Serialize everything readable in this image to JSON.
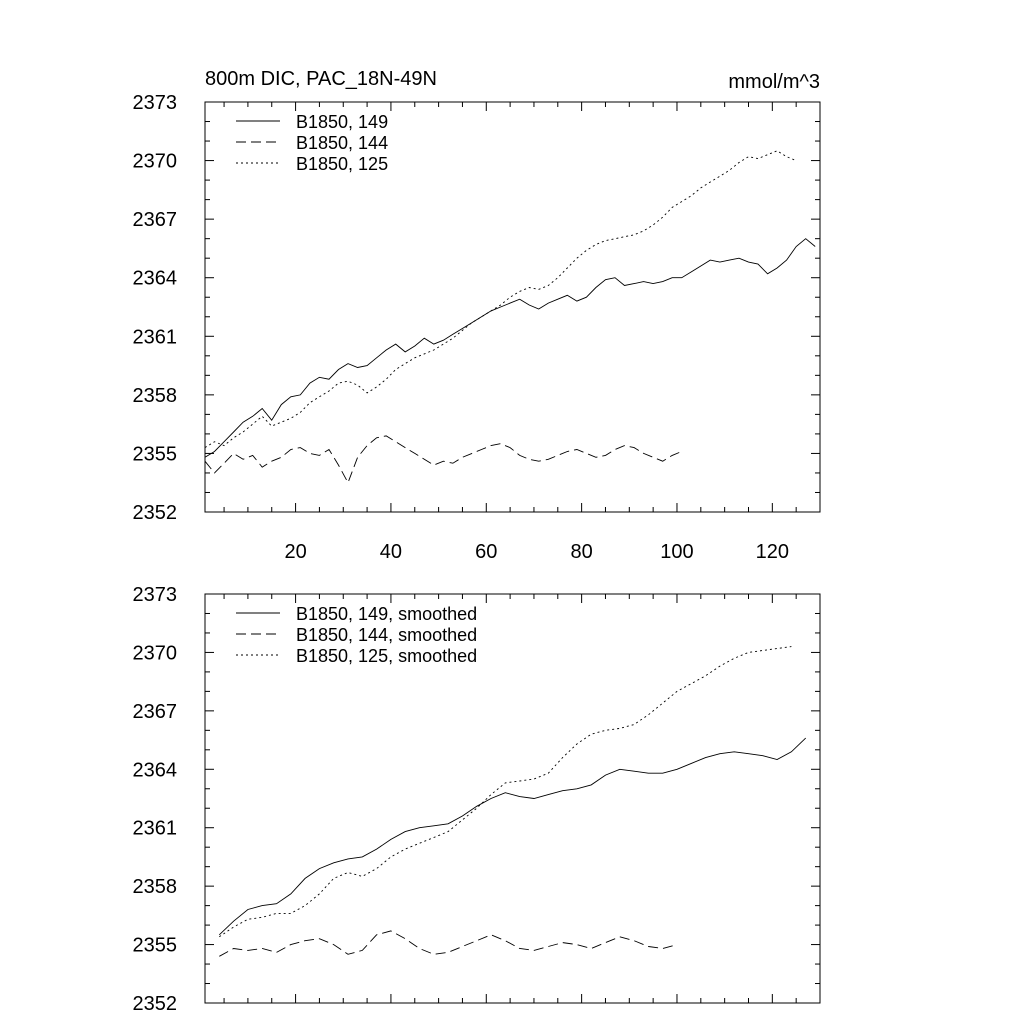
{
  "chart_data": [
    {
      "type": "line",
      "title": "800m DIC, PAC_18N-49N",
      "units": "mmol/m^3",
      "xlim": [
        1,
        130
      ],
      "ylim": [
        2352,
        2373
      ],
      "yticks": [
        2352,
        2355,
        2358,
        2361,
        2364,
        2367,
        2370,
        2373
      ],
      "xticks": [
        20,
        40,
        60,
        80,
        100,
        120
      ],
      "xtick_labels": [
        "20",
        "40",
        "60",
        "80",
        "100",
        "120"
      ],
      "legend": [
        "B1850, 149",
        "B1850, 144",
        "B1850, 125"
      ],
      "series": [
        {
          "name": "B1850, 149",
          "style": "solid",
          "x": [
            1,
            3,
            5,
            7,
            9,
            11,
            13,
            15,
            17,
            19,
            21,
            23,
            25,
            27,
            29,
            31,
            33,
            35,
            37,
            39,
            41,
            43,
            45,
            47,
            49,
            51,
            53,
            55,
            57,
            59,
            61,
            63,
            65,
            67,
            69,
            71,
            73,
            75,
            77,
            79,
            81,
            83,
            85,
            87,
            89,
            91,
            93,
            95,
            97,
            99,
            101,
            103,
            105,
            107,
            109,
            111,
            113,
            115,
            117,
            119,
            121,
            123,
            125,
            127,
            129
          ],
          "values": [
            2354.8,
            2355.1,
            2355.6,
            2356.1,
            2356.6,
            2356.9,
            2357.3,
            2356.7,
            2357.5,
            2357.9,
            2358.0,
            2358.6,
            2358.9,
            2358.8,
            2359.3,
            2359.6,
            2359.4,
            2359.5,
            2359.9,
            2360.3,
            2360.6,
            2360.2,
            2360.5,
            2360.9,
            2360.6,
            2360.8,
            2361.1,
            2361.4,
            2361.7,
            2362.0,
            2362.3,
            2362.5,
            2362.7,
            2362.9,
            2362.6,
            2362.4,
            2362.7,
            2362.9,
            2363.1,
            2362.8,
            2363.0,
            2363.5,
            2363.9,
            2364.0,
            2363.6,
            2363.7,
            2363.8,
            2363.7,
            2363.8,
            2364.0,
            2364.0,
            2364.3,
            2364.6,
            2364.9,
            2364.8,
            2364.9,
            2365.0,
            2364.8,
            2364.7,
            2364.2,
            2364.5,
            2364.9,
            2365.6,
            2366.0,
            2365.6
          ]
        },
        {
          "name": "B1850, 144",
          "style": "dashed",
          "x": [
            1,
            3,
            5,
            7,
            9,
            11,
            13,
            15,
            17,
            19,
            21,
            23,
            25,
            27,
            29,
            31,
            33,
            35,
            37,
            39,
            41,
            43,
            45,
            47,
            49,
            51,
            53,
            55,
            57,
            59,
            61,
            63,
            65,
            67,
            69,
            71,
            73,
            75,
            77,
            79,
            81,
            83,
            85,
            87,
            89,
            91,
            93,
            95,
            97,
            99,
            101
          ],
          "values": [
            2354.6,
            2354.0,
            2354.5,
            2355.0,
            2354.7,
            2354.9,
            2354.3,
            2354.6,
            2354.8,
            2355.2,
            2355.3,
            2355.0,
            2354.9,
            2355.2,
            2354.4,
            2353.5,
            2354.8,
            2355.4,
            2355.8,
            2355.9,
            2355.6,
            2355.3,
            2355.0,
            2354.7,
            2354.4,
            2354.6,
            2354.5,
            2354.8,
            2355.0,
            2355.2,
            2355.4,
            2355.5,
            2355.3,
            2354.9,
            2354.7,
            2354.6,
            2354.7,
            2354.9,
            2355.1,
            2355.2,
            2355.0,
            2354.8,
            2354.9,
            2355.2,
            2355.4,
            2355.3,
            2355.0,
            2354.8,
            2354.6,
            2354.9,
            2355.1
          ]
        },
        {
          "name": "B1850, 125",
          "style": "dotted",
          "x": [
            1,
            3,
            5,
            7,
            9,
            11,
            13,
            15,
            17,
            19,
            21,
            23,
            25,
            27,
            29,
            31,
            33,
            35,
            37,
            39,
            41,
            43,
            45,
            47,
            49,
            51,
            53,
            55,
            57,
            59,
            61,
            63,
            65,
            67,
            69,
            71,
            73,
            75,
            77,
            79,
            81,
            83,
            85,
            87,
            89,
            91,
            93,
            95,
            97,
            99,
            101,
            103,
            105,
            107,
            109,
            111,
            113,
            115,
            117,
            119,
            121,
            123,
            125
          ],
          "values": [
            2355.3,
            2355.6,
            2355.4,
            2355.8,
            2356.1,
            2356.5,
            2356.9,
            2356.4,
            2356.6,
            2356.8,
            2357.1,
            2357.6,
            2357.9,
            2358.2,
            2358.6,
            2358.7,
            2358.5,
            2358.1,
            2358.4,
            2358.8,
            2359.3,
            2359.6,
            2359.9,
            2360.1,
            2360.3,
            2360.6,
            2360.9,
            2361.3,
            2361.7,
            2362.0,
            2362.3,
            2362.6,
            2363.0,
            2363.3,
            2363.5,
            2363.4,
            2363.6,
            2364.0,
            2364.5,
            2365.0,
            2365.4,
            2365.7,
            2365.9,
            2366.0,
            2366.1,
            2366.2,
            2366.4,
            2366.7,
            2367.1,
            2367.6,
            2367.9,
            2368.2,
            2368.6,
            2368.9,
            2369.2,
            2369.5,
            2369.9,
            2370.2,
            2370.1,
            2370.3,
            2370.5,
            2370.2,
            2370.0
          ]
        }
      ]
    },
    {
      "type": "line",
      "title": "",
      "units": "",
      "xlim": [
        1,
        130
      ],
      "ylim": [
        2352,
        2373
      ],
      "yticks": [
        2352,
        2355,
        2358,
        2361,
        2364,
        2367,
        2370,
        2373
      ],
      "xticks": [
        20,
        40,
        60,
        80,
        100,
        120
      ],
      "xtick_labels": [],
      "legend": [
        "B1850, 149, smoothed",
        "B1850, 144, smoothed",
        "B1850, 125, smoothed"
      ],
      "series": [
        {
          "name": "B1850, 149, smoothed",
          "style": "solid",
          "x": [
            4,
            7,
            10,
            13,
            16,
            19,
            22,
            25,
            28,
            31,
            34,
            37,
            40,
            43,
            46,
            49,
            52,
            55,
            58,
            61,
            64,
            67,
            70,
            73,
            76,
            79,
            82,
            85,
            88,
            91,
            94,
            97,
            100,
            103,
            106,
            109,
            112,
            115,
            118,
            121,
            124,
            127
          ],
          "values": [
            2355.5,
            2356.2,
            2356.8,
            2357.0,
            2357.1,
            2357.6,
            2358.4,
            2358.9,
            2359.2,
            2359.4,
            2359.5,
            2359.9,
            2360.4,
            2360.8,
            2361.0,
            2361.1,
            2361.2,
            2361.6,
            2362.1,
            2362.5,
            2362.8,
            2362.6,
            2362.5,
            2362.7,
            2362.9,
            2363.0,
            2363.2,
            2363.7,
            2364.0,
            2363.9,
            2363.8,
            2363.8,
            2364.0,
            2364.3,
            2364.6,
            2364.8,
            2364.9,
            2364.8,
            2364.7,
            2364.5,
            2364.9,
            2365.6
          ]
        },
        {
          "name": "B1850, 144, smoothed",
          "style": "dashed",
          "x": [
            4,
            7,
            10,
            13,
            16,
            19,
            22,
            25,
            28,
            31,
            34,
            37,
            40,
            43,
            46,
            49,
            52,
            55,
            58,
            61,
            64,
            67,
            70,
            73,
            76,
            79,
            82,
            85,
            88,
            91,
            94,
            97,
            100
          ],
          "values": [
            2354.4,
            2354.8,
            2354.7,
            2354.8,
            2354.6,
            2355.0,
            2355.2,
            2355.3,
            2355.0,
            2354.5,
            2354.7,
            2355.5,
            2355.7,
            2355.3,
            2354.8,
            2354.5,
            2354.6,
            2354.9,
            2355.2,
            2355.5,
            2355.2,
            2354.8,
            2354.7,
            2354.9,
            2355.1,
            2355.0,
            2354.8,
            2355.1,
            2355.4,
            2355.2,
            2354.9,
            2354.8,
            2355.0
          ]
        },
        {
          "name": "B1850, 125, smoothed",
          "style": "dotted",
          "x": [
            4,
            7,
            10,
            13,
            16,
            19,
            22,
            25,
            28,
            31,
            34,
            37,
            40,
            43,
            46,
            49,
            52,
            55,
            58,
            61,
            64,
            67,
            70,
            73,
            76,
            79,
            82,
            85,
            88,
            91,
            94,
            97,
            100,
            103,
            106,
            109,
            112,
            115,
            118,
            121,
            124
          ],
          "values": [
            2355.4,
            2355.9,
            2356.3,
            2356.4,
            2356.6,
            2356.6,
            2357.0,
            2357.6,
            2358.4,
            2358.7,
            2358.5,
            2358.9,
            2359.5,
            2359.9,
            2360.2,
            2360.5,
            2360.8,
            2361.4,
            2362.0,
            2362.7,
            2363.3,
            2363.4,
            2363.5,
            2363.8,
            2364.6,
            2365.3,
            2365.8,
            2366.0,
            2366.1,
            2366.3,
            2366.8,
            2367.4,
            2368.0,
            2368.4,
            2368.8,
            2369.3,
            2369.7,
            2370.0,
            2370.1,
            2370.2,
            2370.3
          ]
        }
      ]
    }
  ]
}
